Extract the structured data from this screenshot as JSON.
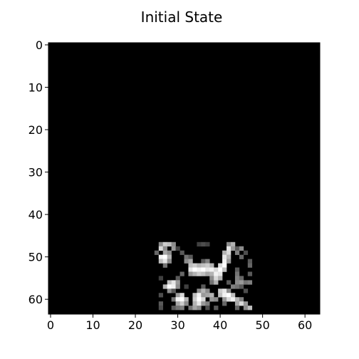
{
  "figure": {
    "title": "Initial State"
  },
  "chart_data": {
    "type": "heatmap",
    "title": "Initial State",
    "colormap": "gray",
    "background_value": 0,
    "rows": 64,
    "cols": 64,
    "xlim": [
      -0.5,
      63.5
    ],
    "ylim": [
      63.5,
      -0.5
    ],
    "xticks": [
      0,
      10,
      20,
      30,
      40,
      50,
      60
    ],
    "yticks": [
      0,
      10,
      20,
      30,
      40,
      50,
      60
    ],
    "xlabel": "",
    "ylabel": "",
    "grid": false,
    "nonzero_cells": [
      [
        47,
        26,
        0.55
      ],
      [
        47,
        27,
        0.8
      ],
      [
        47,
        28,
        0.75
      ],
      [
        47,
        29,
        0.55
      ],
      [
        47,
        35,
        0.25
      ],
      [
        47,
        36,
        0.3
      ],
      [
        47,
        37,
        0.25
      ],
      [
        47,
        42,
        0.55
      ],
      [
        47,
        43,
        0.7
      ],
      [
        48,
        26,
        0.85
      ],
      [
        48,
        27,
        0.55
      ],
      [
        48,
        29,
        0.6
      ],
      [
        48,
        30,
        0.25
      ],
      [
        48,
        42,
        0.9
      ],
      [
        48,
        43,
        0.6
      ],
      [
        48,
        44,
        0.35
      ],
      [
        48,
        45,
        0.55
      ],
      [
        49,
        25,
        0.4
      ],
      [
        49,
        27,
        0.65
      ],
      [
        49,
        28,
        0.55
      ],
      [
        49,
        31,
        0.35
      ],
      [
        49,
        41,
        0.7
      ],
      [
        49,
        42,
        0.85
      ],
      [
        49,
        44,
        0.5
      ],
      [
        49,
        46,
        0.3
      ],
      [
        50,
        26,
        0.95
      ],
      [
        50,
        27,
        1.0
      ],
      [
        50,
        28,
        0.7
      ],
      [
        50,
        32,
        0.45
      ],
      [
        50,
        33,
        0.35
      ],
      [
        50,
        41,
        0.9
      ],
      [
        50,
        42,
        0.7
      ],
      [
        50,
        45,
        0.4
      ],
      [
        51,
        26,
        0.75
      ],
      [
        51,
        27,
        0.9
      ],
      [
        51,
        28,
        0.55
      ],
      [
        51,
        32,
        0.55
      ],
      [
        51,
        33,
        0.65
      ],
      [
        51,
        36,
        0.35
      ],
      [
        51,
        37,
        0.5
      ],
      [
        51,
        41,
        0.95
      ],
      [
        51,
        42,
        0.6
      ],
      [
        51,
        47,
        0.35
      ],
      [
        52,
        27,
        0.45
      ],
      [
        52,
        33,
        0.75
      ],
      [
        52,
        34,
        0.8
      ],
      [
        52,
        35,
        0.7
      ],
      [
        52,
        36,
        0.75
      ],
      [
        52,
        37,
        0.8
      ],
      [
        52,
        38,
        0.7
      ],
      [
        52,
        40,
        0.85
      ],
      [
        52,
        41,
        1.0
      ],
      [
        52,
        47,
        0.4
      ],
      [
        53,
        33,
        0.9
      ],
      [
        53,
        34,
        1.0
      ],
      [
        53,
        35,
        0.95
      ],
      [
        53,
        36,
        1.0
      ],
      [
        53,
        37,
        0.9
      ],
      [
        53,
        38,
        0.95
      ],
      [
        53,
        39,
        0.85
      ],
      [
        53,
        40,
        1.0
      ],
      [
        53,
        41,
        0.75
      ],
      [
        53,
        44,
        0.35
      ],
      [
        54,
        31,
        0.4
      ],
      [
        54,
        33,
        0.6
      ],
      [
        54,
        34,
        0.7
      ],
      [
        54,
        35,
        0.8
      ],
      [
        54,
        36,
        0.75
      ],
      [
        54,
        37,
        0.65
      ],
      [
        54,
        38,
        0.7
      ],
      [
        54,
        39,
        0.95
      ],
      [
        54,
        40,
        0.9
      ],
      [
        54,
        44,
        0.45
      ],
      [
        54,
        47,
        0.35
      ],
      [
        55,
        26,
        0.25
      ],
      [
        55,
        30,
        0.35
      ],
      [
        55,
        38,
        0.55
      ],
      [
        55,
        39,
        0.85
      ],
      [
        55,
        40,
        0.7
      ],
      [
        55,
        44,
        0.5
      ],
      [
        55,
        45,
        0.4
      ],
      [
        56,
        28,
        0.75
      ],
      [
        56,
        29,
        0.9
      ],
      [
        56,
        30,
        0.6
      ],
      [
        56,
        38,
        0.45
      ],
      [
        56,
        39,
        0.7
      ],
      [
        56,
        42,
        0.35
      ],
      [
        56,
        44,
        0.55
      ],
      [
        56,
        45,
        0.6
      ],
      [
        56,
        46,
        0.45
      ],
      [
        56,
        47,
        0.5
      ],
      [
        57,
        27,
        0.7
      ],
      [
        57,
        28,
        1.0
      ],
      [
        57,
        29,
        0.95
      ],
      [
        57,
        30,
        0.55
      ],
      [
        57,
        32,
        0.25
      ],
      [
        57,
        36,
        0.35
      ],
      [
        57,
        43,
        0.5
      ],
      [
        57,
        44,
        0.45
      ],
      [
        57,
        45,
        0.35
      ],
      [
        58,
        28,
        0.55
      ],
      [
        58,
        29,
        0.35
      ],
      [
        58,
        35,
        0.55
      ],
      [
        58,
        36,
        0.7
      ],
      [
        58,
        37,
        0.55
      ],
      [
        58,
        40,
        0.8
      ],
      [
        58,
        41,
        0.9
      ],
      [
        58,
        42,
        0.55
      ],
      [
        58,
        46,
        0.3
      ],
      [
        59,
        26,
        0.3
      ],
      [
        59,
        30,
        0.6
      ],
      [
        59,
        31,
        0.85
      ],
      [
        59,
        34,
        0.75
      ],
      [
        59,
        35,
        0.95
      ],
      [
        59,
        36,
        0.6
      ],
      [
        59,
        37,
        0.65
      ],
      [
        59,
        38,
        0.7
      ],
      [
        59,
        40,
        0.75
      ],
      [
        59,
        41,
        0.95
      ],
      [
        59,
        42,
        1.0
      ],
      [
        59,
        43,
        0.75
      ],
      [
        60,
        29,
        0.45
      ],
      [
        60,
        30,
        0.95
      ],
      [
        60,
        31,
        1.0
      ],
      [
        60,
        32,
        0.7
      ],
      [
        60,
        34,
        0.8
      ],
      [
        60,
        35,
        1.0
      ],
      [
        60,
        36,
        0.85
      ],
      [
        60,
        38,
        0.6
      ],
      [
        60,
        39,
        0.55
      ],
      [
        60,
        41,
        0.6
      ],
      [
        60,
        42,
        0.85
      ],
      [
        60,
        43,
        0.95
      ],
      [
        60,
        44,
        0.7
      ],
      [
        60,
        45,
        0.5
      ],
      [
        61,
        26,
        0.35
      ],
      [
        61,
        30,
        0.65
      ],
      [
        61,
        31,
        0.8
      ],
      [
        61,
        32,
        0.55
      ],
      [
        61,
        34,
        0.7
      ],
      [
        61,
        35,
        0.9
      ],
      [
        61,
        36,
        0.6
      ],
      [
        61,
        37,
        0.5
      ],
      [
        61,
        41,
        0.4
      ],
      [
        61,
        44,
        0.65
      ],
      [
        61,
        45,
        0.85
      ],
      [
        61,
        46,
        0.6
      ],
      [
        62,
        26,
        0.3
      ],
      [
        62,
        29,
        0.35
      ],
      [
        62,
        30,
        0.45
      ],
      [
        62,
        31,
        0.5
      ],
      [
        62,
        33,
        0.45
      ],
      [
        62,
        34,
        0.65
      ],
      [
        62,
        35,
        0.55
      ],
      [
        62,
        37,
        0.3
      ],
      [
        62,
        39,
        0.35
      ],
      [
        62,
        44,
        0.4
      ],
      [
        62,
        46,
        0.55
      ],
      [
        62,
        47,
        0.75
      ]
    ]
  }
}
